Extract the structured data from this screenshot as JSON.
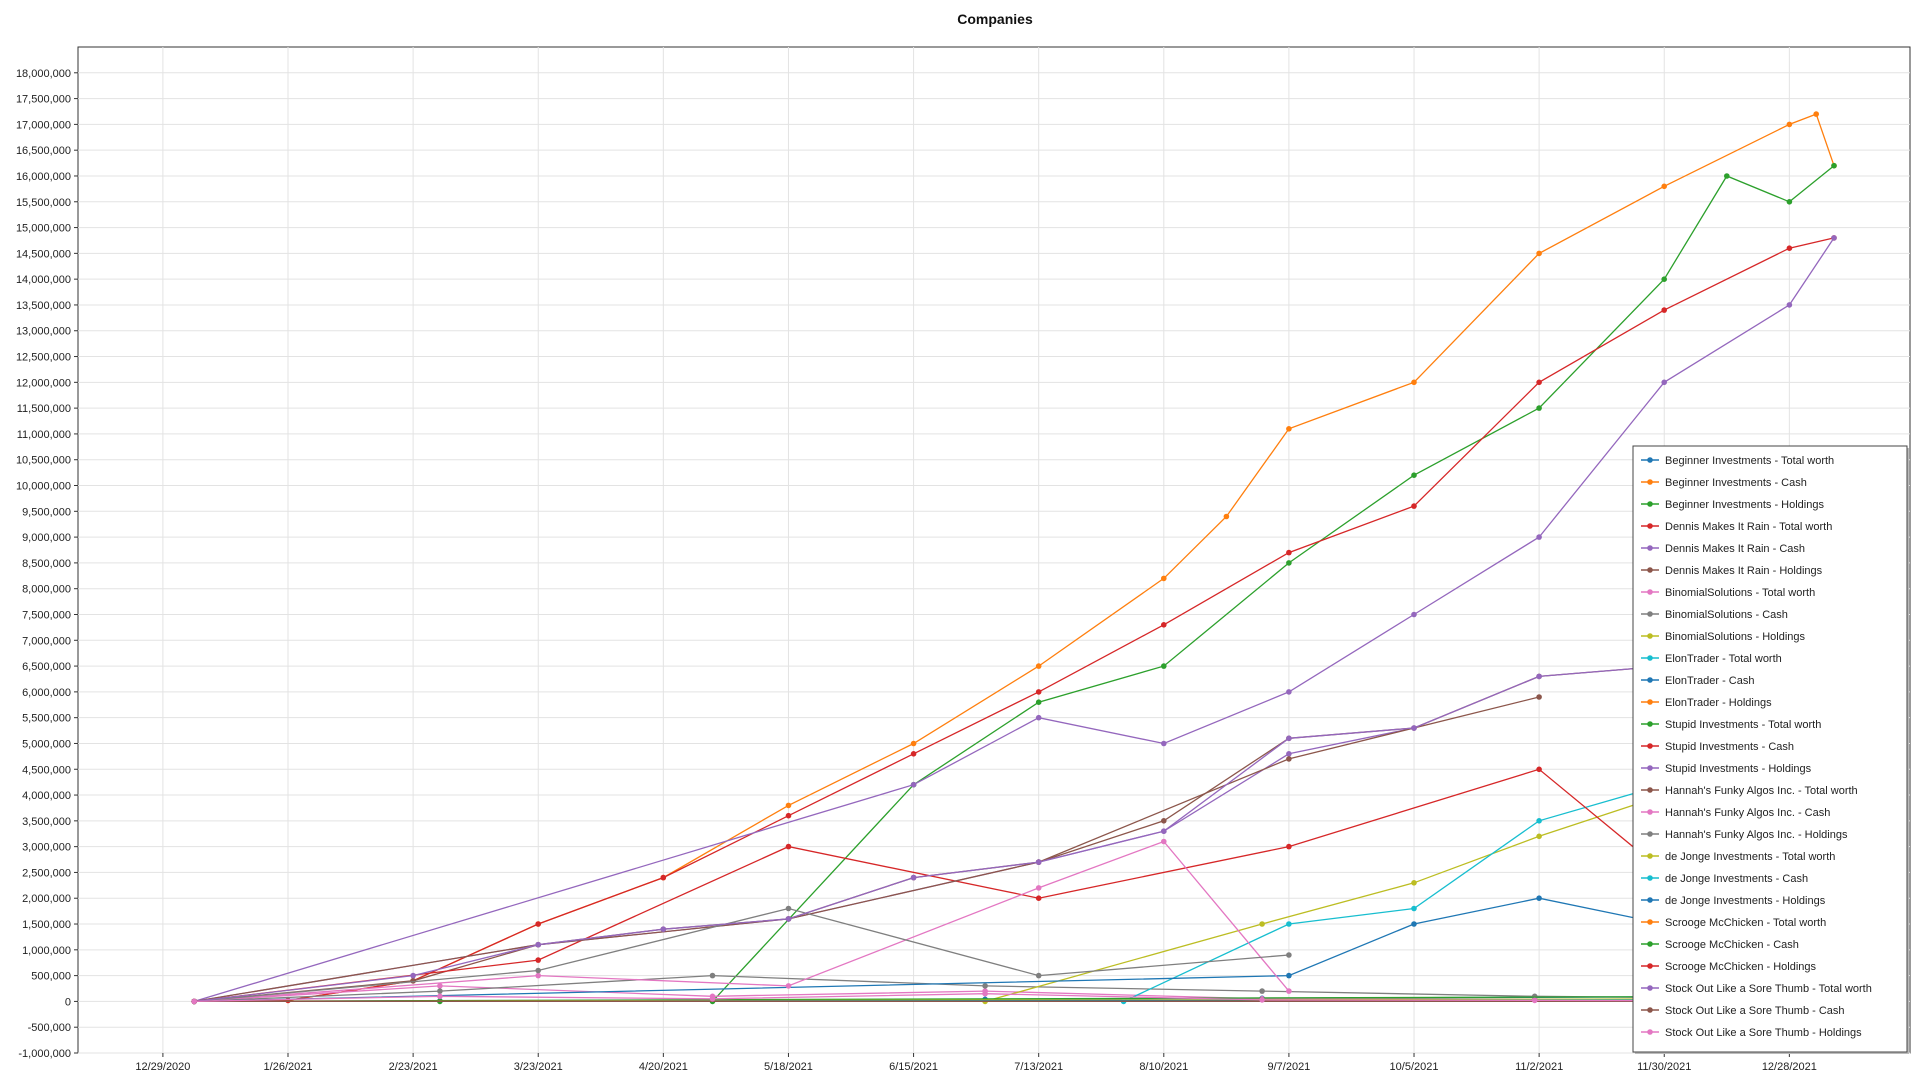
{
  "chart_data": {
    "type": "line",
    "title": "Companies",
    "xlabel": "",
    "ylabel": "",
    "grid": true,
    "legend_position": "right",
    "x_ticks": [
      "12/29/2020",
      "1/26/2021",
      "2/23/2021",
      "3/23/2021",
      "4/20/2021",
      "5/18/2021",
      "6/15/2021",
      "7/13/2021",
      "8/10/2021",
      "9/7/2021",
      "10/5/2021",
      "11/2/2021",
      "11/30/2021",
      "12/28/2021"
    ],
    "xlim": [
      "2020-12-10",
      "2022-01-24"
    ],
    "ylim": [
      -1000000,
      18500000
    ],
    "y_ticks": [
      -1000000,
      -500000,
      0,
      500000,
      1000000,
      1500000,
      2000000,
      2500000,
      3000000,
      3500000,
      4000000,
      4500000,
      5000000,
      5500000,
      6000000,
      6500000,
      7000000,
      7500000,
      8000000,
      8500000,
      9000000,
      9500000,
      10000000,
      10500000,
      11000000,
      11500000,
      12000000,
      12500000,
      13000000,
      13500000,
      14000000,
      14500000,
      15000000,
      15500000,
      16000000,
      16500000,
      17000000,
      17500000,
      18000000
    ],
    "series": [
      {
        "name": "Beginner Investments - Total worth",
        "color": "#1f77b4",
        "x": [
          "2021-01-05",
          "2021-03-01",
          "2021-05-01",
          "2021-07-01",
          "2021-09-01",
          "2021-11-01",
          "2022-01-03"
        ],
        "y": [
          0,
          10000,
          20000,
          40000,
          60000,
          80000,
          100000
        ]
      },
      {
        "name": "Beginner Investments - Cash",
        "color": "#ff7f0e",
        "x": [
          "2021-01-05",
          "2021-01-26",
          "2021-02-23",
          "2021-03-23",
          "2021-04-20",
          "2021-05-18",
          "2021-06-15",
          "2021-07-13",
          "2021-08-10",
          "2021-08-24",
          "2021-09-07",
          "2021-10-05",
          "2021-11-02",
          "2021-11-30",
          "2021-12-28",
          "2022-01-03",
          "2022-01-07"
        ],
        "y": [
          0,
          20000,
          400000,
          1500000,
          2400000,
          3800000,
          5000000,
          6500000,
          8200000,
          9400000,
          11100000,
          12000000,
          14500000,
          15800000,
          17000000,
          17200000,
          16200000
        ]
      },
      {
        "name": "Beginner Investments - Holdings",
        "color": "#2ca02c",
        "x": [
          "2021-01-05",
          "2021-03-01",
          "2021-05-01",
          "2021-06-15",
          "2021-07-13",
          "2021-08-10",
          "2021-09-07",
          "2021-10-05",
          "2021-11-02",
          "2021-11-30",
          "2021-12-14",
          "2021-12-28",
          "2022-01-07"
        ],
        "y": [
          0,
          0,
          0,
          4200000,
          5800000,
          6500000,
          8500000,
          10200000,
          11500000,
          14000000,
          16000000,
          15500000,
          16200000
        ]
      },
      {
        "name": "Dennis Makes It Rain - Total worth",
        "color": "#d62728",
        "x": [
          "2021-01-05",
          "2021-01-26",
          "2021-02-23",
          "2021-03-23",
          "2021-04-20",
          "2021-05-18",
          "2021-06-15",
          "2021-07-13",
          "2021-08-10",
          "2021-09-07",
          "2021-10-05",
          "2021-11-02",
          "2021-11-30",
          "2021-12-28",
          "2022-01-07"
        ],
        "y": [
          0,
          20000,
          400000,
          1500000,
          2400000,
          3600000,
          4800000,
          6000000,
          7300000,
          8700000,
          9600000,
          12000000,
          13400000,
          14600000,
          14800000
        ]
      },
      {
        "name": "Dennis Makes It Rain - Cash",
        "color": "#9467bd",
        "x": [
          "2021-01-05",
          "2021-06-15",
          "2021-07-13",
          "2021-08-10",
          "2021-09-07",
          "2021-10-05",
          "2021-11-02",
          "2021-11-30",
          "2021-12-28",
          "2022-01-07"
        ],
        "y": [
          0,
          4200000,
          5500000,
          5000000,
          6000000,
          7500000,
          9000000,
          12000000,
          13500000,
          14800000
        ]
      },
      {
        "name": "Dennis Makes It Rain - Holdings",
        "color": "#8c564b",
        "x": [
          "2021-01-05",
          "2021-02-23",
          "2021-03-23",
          "2021-04-20",
          "2021-05-18",
          "2021-06-15",
          "2021-07-13",
          "2021-08-10",
          "2021-09-07",
          "2021-10-05",
          "2021-11-02",
          "2021-11-30"
        ],
        "y": [
          0,
          400000,
          1100000,
          1400000,
          1600000,
          2400000,
          2700000,
          3500000,
          5100000,
          5300000,
          6300000,
          6500000
        ]
      },
      {
        "name": "BinomialSolutions - Total worth",
        "color": "#e377c2",
        "x": [
          "2021-01-05",
          "2021-03-01",
          "2021-05-01",
          "2021-07-01",
          "2021-09-01",
          "2021-11-01",
          "2022-01-03"
        ],
        "y": [
          0,
          300000,
          100000,
          200000,
          50000,
          40000,
          30000
        ]
      },
      {
        "name": "BinomialSolutions - Cash",
        "color": "#7f7f7f",
        "x": [
          "2021-01-05",
          "2021-03-01",
          "2021-05-01",
          "2021-07-01",
          "2021-09-01",
          "2021-11-01",
          "2022-01-03"
        ],
        "y": [
          0,
          200000,
          500000,
          300000,
          200000,
          100000,
          50000
        ]
      },
      {
        "name": "BinomialSolutions - Holdings",
        "color": "#bcbd22",
        "x": [
          "2021-01-05",
          "2021-07-01",
          "2021-09-01",
          "2021-10-05",
          "2021-11-02",
          "2021-11-30"
        ],
        "y": [
          0,
          0,
          1500000,
          2300000,
          3200000,
          4000000
        ]
      },
      {
        "name": "ElonTrader - Total worth",
        "color": "#17becf",
        "x": [
          "2021-01-05",
          "2021-08-01",
          "2021-09-07",
          "2021-10-05",
          "2021-11-02",
          "2021-11-30"
        ],
        "y": [
          0,
          0,
          1500000,
          1800000,
          3500000,
          4200000
        ]
      },
      {
        "name": "ElonTrader - Cash",
        "color": "#1f77b4",
        "x": [
          "2021-01-05",
          "2021-09-07",
          "2021-10-05",
          "2021-11-02",
          "2021-11-30"
        ],
        "y": [
          0,
          500000,
          1500000,
          2000000,
          1500000
        ]
      },
      {
        "name": "ElonTrader - Holdings",
        "color": "#ff7f0e",
        "x": [
          "2021-01-05",
          "2021-12-28"
        ],
        "y": [
          0,
          0
        ]
      },
      {
        "name": "Stupid Investments - Total worth",
        "color": "#2ca02c",
        "x": [
          "2021-01-05",
          "2021-12-28"
        ],
        "y": [
          0,
          100000
        ]
      },
      {
        "name": "Stupid Investments - Cash",
        "color": "#d62728",
        "x": [
          "2021-01-05",
          "2021-03-23",
          "2021-05-18",
          "2021-07-13",
          "2021-09-07",
          "2021-11-02",
          "2021-11-30"
        ],
        "y": [
          0,
          800000,
          3000000,
          2000000,
          3000000,
          4500000,
          2500000
        ]
      },
      {
        "name": "Stupid Investments - Holdings",
        "color": "#9467bd",
        "x": [
          "2021-01-05",
          "2021-03-23",
          "2021-05-18",
          "2021-07-13",
          "2021-08-10",
          "2021-09-07",
          "2021-10-05"
        ],
        "y": [
          0,
          1100000,
          1600000,
          2700000,
          3300000,
          4800000,
          5300000
        ]
      },
      {
        "name": "Hannah's Funky Algos Inc. - Total worth",
        "color": "#8c564b",
        "x": [
          "2021-01-05",
          "2021-03-23",
          "2021-05-18",
          "2021-07-13",
          "2021-09-07",
          "2021-11-02"
        ],
        "y": [
          0,
          1100000,
          1600000,
          2700000,
          4700000,
          5900000
        ]
      },
      {
        "name": "Hannah's Funky Algos Inc. - Cash",
        "color": "#e377c2",
        "x": [
          "2021-01-05",
          "2021-03-23",
          "2021-05-18",
          "2021-07-13",
          "2021-08-10",
          "2021-09-07"
        ],
        "y": [
          0,
          500000,
          300000,
          2200000,
          3100000,
          200000
        ]
      },
      {
        "name": "Hannah's Funky Algos Inc. - Holdings",
        "color": "#7f7f7f",
        "x": [
          "2021-01-05",
          "2021-03-23",
          "2021-05-18",
          "2021-07-13",
          "2021-09-07"
        ],
        "y": [
          0,
          600000,
          1800000,
          500000,
          900000
        ]
      },
      {
        "name": "de Jonge Investments - Total worth",
        "color": "#bcbd22",
        "x": [
          "2021-01-05",
          "2021-12-28"
        ],
        "y": [
          0,
          50000
        ]
      },
      {
        "name": "de Jonge Investments - Cash",
        "color": "#17becf",
        "x": [
          "2021-01-05",
          "2021-12-28"
        ],
        "y": [
          0,
          30000
        ]
      },
      {
        "name": "de Jonge Investments - Holdings",
        "color": "#1f77b4",
        "x": [
          "2021-01-05",
          "2021-12-28"
        ],
        "y": [
          0,
          20000
        ]
      },
      {
        "name": "Scrooge McChicken - Total worth",
        "color": "#ff7f0e",
        "x": [
          "2021-01-05",
          "2021-12-28"
        ],
        "y": [
          0,
          10000
        ]
      },
      {
        "name": "Scrooge McChicken - Cash",
        "color": "#2ca02c",
        "x": [
          "2021-01-05",
          "2021-12-28"
        ],
        "y": [
          0,
          10000
        ]
      },
      {
        "name": "Scrooge McChicken - Holdings",
        "color": "#d62728",
        "x": [
          "2021-01-05",
          "2021-12-28"
        ],
        "y": [
          0,
          0
        ]
      },
      {
        "name": "Stock Out Like a Sore Thumb - Total worth",
        "color": "#9467bd",
        "x": [
          "2021-01-05",
          "2021-02-23",
          "2021-03-23",
          "2021-04-20",
          "2021-05-18",
          "2021-06-15",
          "2021-07-13",
          "2021-08-10",
          "2021-09-07",
          "2021-10-05",
          "2021-11-02",
          "2021-11-30"
        ],
        "y": [
          0,
          500000,
          1100000,
          1400000,
          1600000,
          2400000,
          2700000,
          3300000,
          5100000,
          5300000,
          6300000,
          6500000
        ]
      },
      {
        "name": "Stock Out Like a Sore Thumb - Cash",
        "color": "#8c564b",
        "x": [
          "2021-01-05",
          "2021-12-28"
        ],
        "y": [
          0,
          0
        ]
      },
      {
        "name": "Stock Out Like a Sore Thumb - Holdings",
        "color": "#e377c2",
        "x": [
          "2021-01-05",
          "2021-03-01",
          "2021-05-01",
          "2021-07-01",
          "2021-09-01",
          "2021-11-01",
          "2022-01-03"
        ],
        "y": [
          0,
          100000,
          50000,
          150000,
          30000,
          20000,
          10000
        ]
      }
    ]
  }
}
